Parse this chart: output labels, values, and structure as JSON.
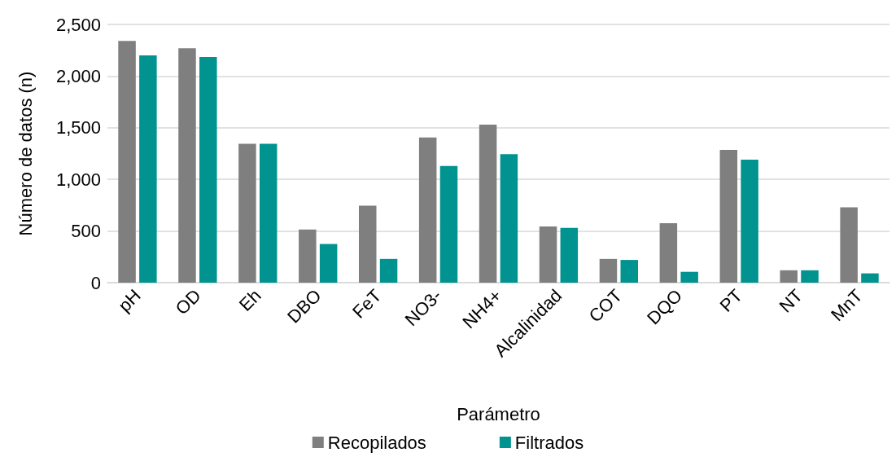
{
  "chart_data": {
    "type": "bar",
    "xlabel": "Parámetro",
    "ylabel": "Número de datos (n)",
    "categories": [
      "pH",
      "OD",
      "Eh",
      "DBO",
      "FeT",
      "NO3-",
      "NH4+",
      "Alcalinidad",
      "COT",
      "DQO",
      "PT",
      "NT",
      "MnT"
    ],
    "series": [
      {
        "name": "Recopilados",
        "color": "#7f7f7f",
        "values": [
          2340,
          2270,
          1345,
          515,
          745,
          1405,
          1530,
          545,
          230,
          575,
          1285,
          120,
          730
        ]
      },
      {
        "name": "Filtrados",
        "color": "#009390",
        "values": [
          2200,
          2185,
          1345,
          375,
          230,
          1130,
          1245,
          530,
          220,
          105,
          1190,
          120,
          90
        ]
      }
    ],
    "ylim": [
      0,
      2500
    ],
    "yticks": [
      {
        "value": 0,
        "label": "0"
      },
      {
        "value": 500,
        "label": "500"
      },
      {
        "value": 1000,
        "label": "1,000"
      },
      {
        "value": 1500,
        "label": "1,500"
      },
      {
        "value": 2000,
        "label": "2,000"
      },
      {
        "value": 2500,
        "label": "2,500"
      }
    ],
    "grid": "y",
    "legend": "bottom"
  }
}
